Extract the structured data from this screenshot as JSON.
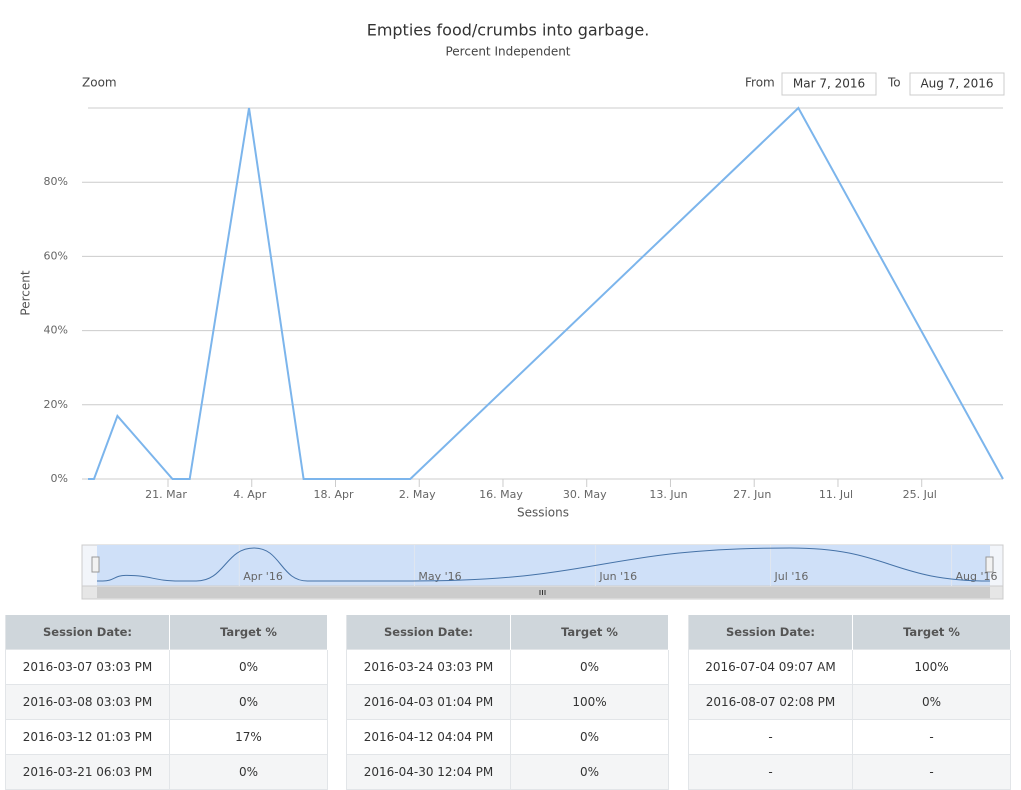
{
  "chart_data": {
    "type": "line",
    "title": "Empties food/crumbs into garbage.",
    "subtitle": "Percent Independent",
    "y_axis_label": "Percent",
    "x_axis_label": "Sessions",
    "x": [
      "2016-03-07 03:03 PM",
      "2016-03-08 03:03 PM",
      "2016-03-12 01:03 PM",
      "2016-03-21 06:03 PM",
      "2016-03-24 03:03 PM",
      "2016-04-03 01:04 PM",
      "2016-04-12 04:04 PM",
      "2016-04-30 12:04 PM",
      "2016-07-04 09:07 AM",
      "2016-08-07 02:08 PM"
    ],
    "values": [
      0,
      0,
      17,
      0,
      0,
      100,
      0,
      0,
      100,
      0
    ],
    "value_labels": [
      "0%",
      "0%",
      "17%",
      "0%",
      "0%",
      "100%",
      "0%",
      "0%",
      "100%",
      "0%"
    ],
    "color": "#7cb5ec",
    "xlim": [
      "2016-03-07 03:03 PM",
      "2016-08-07 02:08 PM"
    ],
    "xticks": [
      {
        "value": "2016-03-21",
        "label": "21. Mar"
      },
      {
        "value": "2016-04-04",
        "label": "4. Apr"
      },
      {
        "value": "2016-04-18",
        "label": "18. Apr"
      },
      {
        "value": "2016-05-02",
        "label": "2. May"
      },
      {
        "value": "2016-05-16",
        "label": "16. May"
      },
      {
        "value": "2016-05-30",
        "label": "30. May"
      },
      {
        "value": "2016-06-13",
        "label": "13. Jun"
      },
      {
        "value": "2016-06-27",
        "label": "27. Jun"
      },
      {
        "value": "2016-07-11",
        "label": "11. Jul"
      },
      {
        "value": "2016-07-25",
        "label": "25. Jul"
      }
    ],
    "ylim": [
      0,
      100
    ],
    "yticks": [
      {
        "value": 0,
        "label": "0%"
      },
      {
        "value": 20,
        "label": "20%"
      },
      {
        "value": 40,
        "label": "40%"
      },
      {
        "value": 60,
        "label": "60%"
      },
      {
        "value": 80,
        "label": "80%"
      }
    ],
    "grid": true,
    "navigator_ticks": [
      {
        "value": "2016-04-01",
        "label": "Apr '16"
      },
      {
        "value": "2016-05-01",
        "label": "May '16"
      },
      {
        "value": "2016-06-01",
        "label": "Jun '16"
      },
      {
        "value": "2016-07-01",
        "label": "Jul '16"
      },
      {
        "value": "2016-08-01",
        "label": "Aug '16"
      }
    ]
  },
  "ui": {
    "zoom": "Zoom",
    "from_label": "From",
    "from": "Mar 7, 2016",
    "to_label": "To",
    "to": "Aug 7, 2016"
  },
  "table": {
    "headers": [
      "Session Date:",
      "Target %"
    ],
    "blank": "-"
  }
}
